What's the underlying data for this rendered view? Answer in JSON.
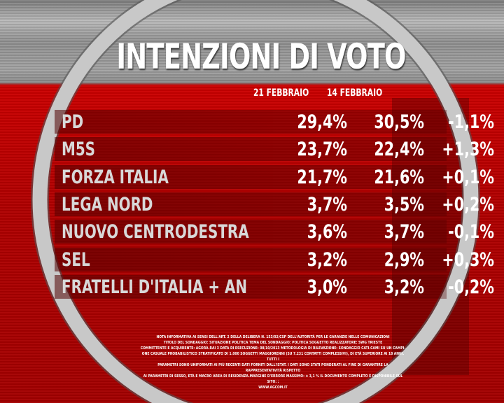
{
  "title": "INTENZIONI DI VOTO",
  "chart_data": {
    "type": "table",
    "columns": [
      "",
      "21 FEBBRAIO",
      "14 FEBBRAIO",
      ""
    ],
    "rows": [
      {
        "party": "PD",
        "feb21": "29,4%",
        "feb14": "30,5%",
        "diff": "-1,1%"
      },
      {
        "party": "M5S",
        "feb21": "23,7%",
        "feb14": "22,4%",
        "diff": "+1,3%"
      },
      {
        "party": "FORZA ITALIA",
        "feb21": "21,7%",
        "feb14": "21,6%",
        "diff": "+0,1%"
      },
      {
        "party": "LEGA NORD",
        "feb21": "3,7%",
        "feb14": "3,5%",
        "diff": "+0,2%"
      },
      {
        "party": "NUOVO CENTRODESTRA",
        "feb21": "3,6%",
        "feb14": "3,7%",
        "diff": "-0,1%"
      },
      {
        "party": "SEL",
        "feb21": "3,2%",
        "feb14": "2,9%",
        "diff": "+0,3%"
      },
      {
        "party": "FRATELLI D'ITALIA + AN",
        "feb21": "3,0%",
        "feb14": "3,2%",
        "diff": "-0,2%"
      }
    ]
  },
  "footnote": [
    "NOTA INFORMATIVA AI SENSI DELL'ART. 2 DELLA DELIBERA N. 153/02/CSP DELL'AUTORITÀ PER LE GARANZIE NELLE COMUNICAZIONI",
    "TITOLO DEL SONDAGGIO: SITUAZIONE POLITICA TEMA DEL SONDAGGIO: POLITICA SOGGETTO REALIZZATORE: SWG TRIESTE",
    "COMMITTENTE E ACQUIRENTE: AGORÀ-RAI 3 DATA DI ESECUZIONE: 08/10/2013 METODOLOGIA DI RILEVAZIONE: SONDAGGIO CATI-CAMI SU UN CAMPI-",
    "ONE CASUALE PROBABILISTICO STRATIFICATO DI 1.000 SOGGETTI MAGGIORENNI (SU 7.231 CONTATTI COMPLESSIVI), DI ETÀ SUPERIORE AI 18 ANNI. TUTTI I",
    "PARAMETRI SONO UNIFORMATI AI PIÙ RECENTI DATI FORNITI DALL'ISTAT. I DATI SONO STATI PONDERATI AL FINE DI GARANTIRE LA RAPPRESENTATIVITÀ RISPETTO",
    "AI PARAMETRI DI SESSO, ETÀ E MACRO AREA DI RESIDENZA.MARGINE D'ERRORE MASSIMO: ± 3,1 % IL DOCUMENTO COMPLETO È DISPONIBILE SUL SITO: :",
    "WWW.AGCOM.IT"
  ]
}
